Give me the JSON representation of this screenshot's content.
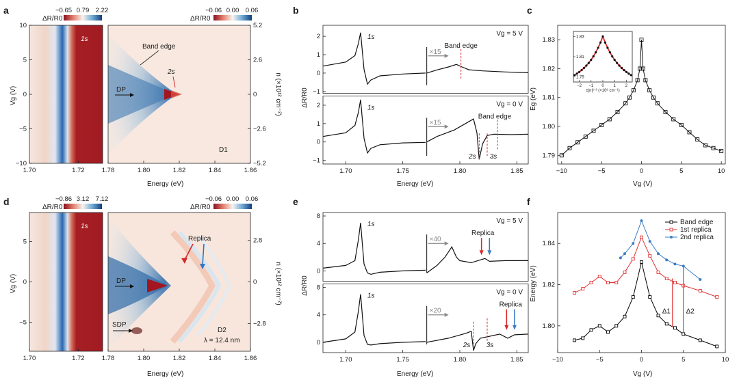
{
  "figure": {
    "panel_labels": [
      "a",
      "b",
      "c",
      "d",
      "e",
      "f"
    ]
  },
  "colors": {
    "red": "#b2182b",
    "blue": "#2166ac",
    "white": "#f7f4f0",
    "band_edge": "#000000",
    "replica1": "#e03030",
    "replica2": "#3b7cc4",
    "dashed_marker": "#d62828"
  },
  "chart_data": [
    {
      "id": "a-left",
      "type": "heatmap",
      "colorbar_label": "ΔR/R0",
      "colorbar_ticks": [
        "−0.65",
        "0.79",
        "2.22"
      ],
      "xlabel": "",
      "ylabel": "Vg (V)",
      "xlim": [
        1.7,
        1.73
      ],
      "ylim": [
        -10,
        10
      ],
      "x_ticks": [
        "1.70",
        "1.72"
      ],
      "y_ticks": [
        "−10",
        "−5",
        "0",
        "5",
        "10"
      ],
      "annotations": [
        "1s"
      ]
    },
    {
      "id": "a-right",
      "type": "heatmap",
      "colorbar_label": "ΔR/R0",
      "colorbar_ticks": [
        "−0.06",
        "0.00",
        "0.06"
      ],
      "xlabel": "Energy (eV)",
      "ylabel_right": "n (×10¹² cm⁻²)",
      "xlim": [
        1.78,
        1.86
      ],
      "x_ticks": [
        "1.78",
        "1.80",
        "1.82",
        "1.84",
        "1.86"
      ],
      "y_ticks_right": [
        "−5.2",
        "−2.6",
        "0",
        "2.6",
        "5.2"
      ],
      "annotations": [
        "Band edge",
        "2s",
        "DP",
        "D1"
      ]
    },
    {
      "id": "b",
      "type": "line",
      "xlabel": "Energy (eV)",
      "ylabel": "ΔR/R0",
      "xlim": [
        1.68,
        1.86
      ],
      "x_ticks": [
        "1.70",
        "1.75",
        "1.80",
        "1.85"
      ],
      "subplots": [
        {
          "label": "Vg = 5 V",
          "y_ticks": [
            "−1",
            "0",
            "1",
            "2"
          ],
          "ylim": [
            -1.1,
            2.6
          ],
          "annotations": [
            "1s",
            "×15",
            "Band edge"
          ],
          "series": [
            {
              "x": [
                1.68,
                1.7,
                1.708,
                1.711,
                1.713,
                1.716,
                1.719,
                1.722,
                1.73,
                1.75,
                1.77
              ],
              "y": [
                0.38,
                0.6,
                0.95,
                1.6,
                2.2,
                0.2,
                -0.6,
                -0.38,
                -0.15,
                -0.05,
                0.0
              ]
            },
            {
              "x": [
                1.771,
                1.78,
                1.79,
                1.797,
                1.802,
                1.808,
                1.82,
                1.84,
                1.86
              ],
              "y": [
                0.0,
                0.17,
                0.33,
                0.47,
                0.33,
                0.18,
                0.12,
                0.06,
                0.02
              ]
            }
          ]
        },
        {
          "label": "Vg = 0 V",
          "y_ticks": [
            "−1",
            "0",
            "1",
            "2"
          ],
          "ylim": [
            -1.2,
            2.5
          ],
          "annotations": [
            "1s",
            "×15",
            "Band edge",
            "2s",
            "3s"
          ],
          "series": [
            {
              "x": [
                1.68,
                1.7,
                1.708,
                1.711,
                1.713,
                1.716,
                1.719,
                1.722,
                1.73,
                1.75,
                1.77
              ],
              "y": [
                0.3,
                0.5,
                0.9,
                1.6,
                2.3,
                0.2,
                -0.6,
                -0.35,
                -0.15,
                -0.05,
                -0.02
              ]
            },
            {
              "x": [
                1.771,
                1.78,
                1.795,
                1.805,
                1.812,
                1.815,
                1.817,
                1.82,
                1.824,
                1.83,
                1.845,
                1.86
              ],
              "y": [
                0.0,
                0.3,
                0.65,
                1.0,
                1.25,
                0.5,
                -0.95,
                -0.1,
                0.35,
                0.42,
                0.4,
                0.42
              ]
            }
          ]
        }
      ]
    },
    {
      "id": "c",
      "type": "scatter",
      "xlabel": "Vg (V)",
      "ylabel": "Eg (eV)",
      "xlim": [
        -10.5,
        10.5
      ],
      "ylim": [
        1.787,
        1.835
      ],
      "x_ticks": [
        "−10",
        "−5",
        "0",
        "5",
        "10"
      ],
      "y_ticks": [
        "1.79",
        "1.80",
        "1.81",
        "1.82",
        "1.83"
      ],
      "series": [
        {
          "name": "Eg",
          "x": [
            -10,
            -9,
            -8,
            -7,
            -6,
            -5,
            -4,
            -3,
            -2,
            -1.5,
            -1,
            -0.5,
            -0.2,
            0,
            0.2,
            0.5,
            1,
            1.5,
            2,
            3,
            4,
            5,
            6,
            7,
            8,
            9,
            10
          ],
          "y": [
            1.79,
            1.7925,
            1.7945,
            1.7965,
            1.7985,
            1.8005,
            1.8025,
            1.805,
            1.808,
            1.81,
            1.8125,
            1.816,
            1.82,
            1.83,
            1.82,
            1.816,
            1.8125,
            1.81,
            1.808,
            1.805,
            1.8025,
            1.8005,
            1.798,
            1.7955,
            1.7935,
            1.7925,
            1.7915
          ]
        }
      ],
      "inset": {
        "xlabel": "±|n|¹ᐟ² (×10⁶ cm⁻¹)",
        "x_ticks": [
          "−2",
          "−1",
          "0",
          "1",
          "2"
        ],
        "y_ticks": [
          "1.79",
          "1.81",
          "1.83"
        ]
      }
    },
    {
      "id": "d-left",
      "type": "heatmap",
      "colorbar_label": "ΔR/R0",
      "colorbar_ticks": [
        "−0.86",
        "3.12",
        "7.12"
      ],
      "ylabel": "Vg (V)",
      "xlim": [
        1.7,
        1.73
      ],
      "ylim": [
        -8.6,
        8.6
      ],
      "x_ticks": [
        "1.70",
        "1.72"
      ],
      "y_ticks": [
        "−5",
        "0",
        "5"
      ],
      "annotations": [
        "1s"
      ]
    },
    {
      "id": "d-right",
      "type": "heatmap",
      "colorbar_label": "ΔR/R0",
      "colorbar_ticks": [
        "−0.06",
        "0.00",
        "0.06"
      ],
      "xlabel": "Energy (eV)",
      "ylabel_right": "n (×10¹² cm⁻²)",
      "xlim": [
        1.78,
        1.86
      ],
      "x_ticks": [
        "1.78",
        "1.80",
        "1.82",
        "1.84",
        "1.86"
      ],
      "y_ticks_right": [
        "−2.8",
        "0",
        "2.8"
      ],
      "annotations": [
        "Replica",
        "DP",
        "SDP",
        "D2",
        "λ = 12.4 nm"
      ]
    },
    {
      "id": "e",
      "type": "line",
      "xlabel": "Energy (eV)",
      "ylabel": "ΔR/R0",
      "xlim": [
        1.68,
        1.86
      ],
      "x_ticks": [
        "1.70",
        "1.75",
        "1.80",
        "1.85"
      ],
      "subplots": [
        {
          "label": "Vg = 5 V",
          "y_ticks": [
            "0",
            "4",
            "8"
          ],
          "ylim": [
            -1.5,
            8.5
          ],
          "annotations": [
            "1s",
            "×40",
            "Replica"
          ],
          "series": [
            {
              "x": [
                1.68,
                1.7,
                1.708,
                1.711,
                1.713,
                1.716,
                1.719,
                1.722,
                1.73,
                1.75,
                1.77
              ],
              "y": [
                0.4,
                0.8,
                1.5,
                4.5,
                7.0,
                1.0,
                -0.3,
                -0.5,
                -0.2,
                0.0,
                0.1
              ]
            },
            {
              "x": [
                1.771,
                1.78,
                1.787,
                1.793,
                1.797,
                1.8,
                1.81,
                1.818,
                1.822,
                1.826,
                1.84,
                1.86
              ],
              "y": [
                -0.3,
                0.8,
                2.0,
                3.5,
                2.0,
                1.5,
                1.2,
                1.6,
                1.8,
                1.4,
                1.5,
                1.5
              ]
            }
          ]
        },
        {
          "label": "Vg = 0 V",
          "y_ticks": [
            "0",
            "4",
            "8"
          ],
          "ylim": [
            -1.5,
            8.5
          ],
          "annotations": [
            "1s",
            "×20",
            "2s",
            "3s",
            "Replica"
          ],
          "series": [
            {
              "x": [
                1.68,
                1.7,
                1.708,
                1.711,
                1.713,
                1.716,
                1.719,
                1.722,
                1.73,
                1.75,
                1.77
              ],
              "y": [
                0.0,
                0.5,
                1.5,
                4.5,
                7.0,
                1.0,
                -0.3,
                -0.4,
                -0.2,
                0.0,
                0.1
              ]
            },
            {
              "x": [
                1.771,
                1.79,
                1.805,
                1.81,
                1.812,
                1.814,
                1.818,
                1.824,
                1.835,
                1.842,
                1.848,
                1.86
              ],
              "y": [
                0.0,
                0.6,
                1.3,
                1.6,
                -1.2,
                -0.2,
                0.6,
                0.8,
                1.2,
                0.6,
                1.1,
                1.2
              ]
            }
          ]
        }
      ]
    },
    {
      "id": "f",
      "type": "line",
      "xlabel": "Vg (V)",
      "ylabel": "Energy (eV)",
      "xlim": [
        -10,
        10
      ],
      "ylim": [
        1.787,
        1.855
      ],
      "x_ticks": [
        "−10",
        "−5",
        "0",
        "5",
        "10"
      ],
      "y_ticks": [
        "1.80",
        "1.82",
        "1.84"
      ],
      "legend": "top-right",
      "annotations": [
        "Δ1",
        "Δ2"
      ],
      "series": [
        {
          "name": "Band edge",
          "x": [
            -8,
            -7,
            -6,
            -5,
            -4,
            -3,
            -2,
            -1,
            0,
            1,
            2,
            3,
            4,
            5,
            7,
            9
          ],
          "y": [
            1.793,
            1.794,
            1.798,
            1.8,
            1.797,
            1.8,
            1.8045,
            1.814,
            1.831,
            1.814,
            1.805,
            1.801,
            1.799,
            1.796,
            1.793,
            1.79
          ]
        },
        {
          "name": "1st replica",
          "x": [
            -8,
            -7,
            -6,
            -5,
            -4,
            -3,
            -2,
            -1,
            0,
            1,
            2,
            3,
            4,
            5,
            7,
            9
          ],
          "y": [
            1.816,
            1.818,
            1.821,
            1.824,
            1.821,
            1.821,
            1.826,
            1.8325,
            1.843,
            1.834,
            1.826,
            1.823,
            1.821,
            1.8195,
            1.817,
            1.814
          ]
        },
        {
          "name": "2nd replica",
          "x": [
            -2.5,
            -2,
            -1,
            0,
            1,
            2,
            3,
            4,
            5,
            7
          ],
          "y": [
            1.833,
            1.835,
            1.84,
            1.851,
            1.841,
            1.835,
            1.832,
            1.83,
            1.829,
            1.8225
          ]
        }
      ]
    }
  ]
}
